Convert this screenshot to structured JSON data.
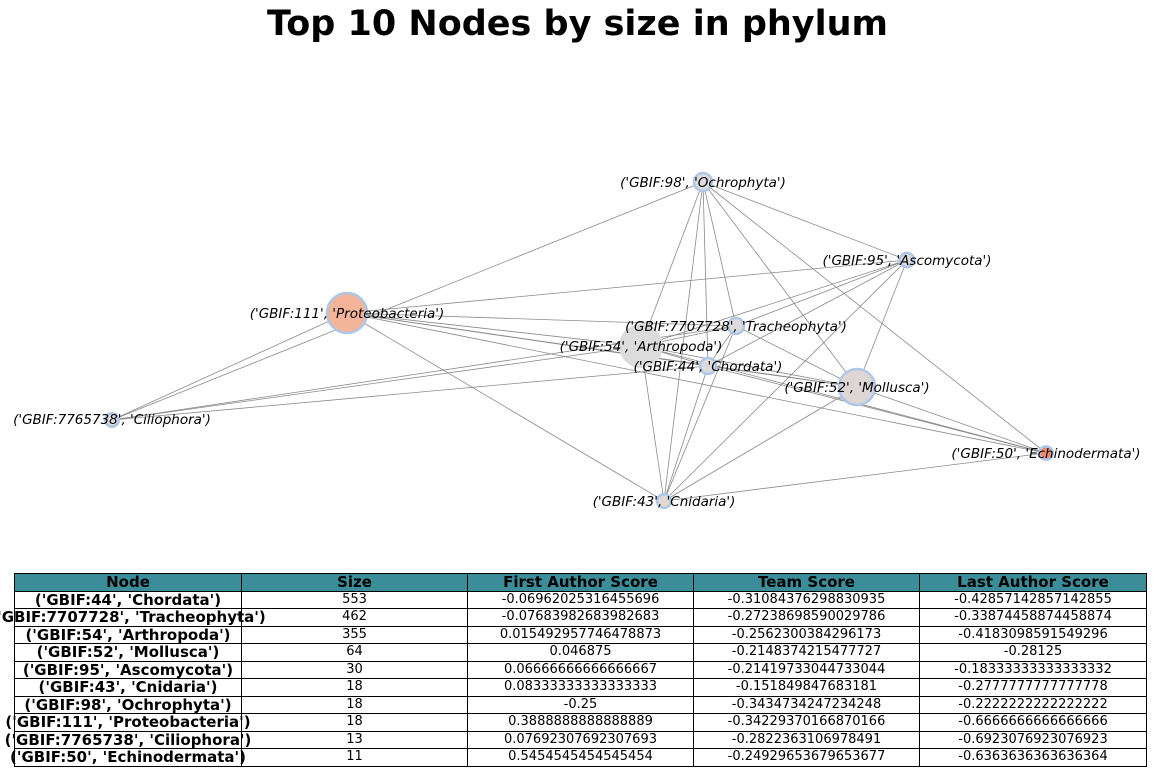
{
  "title": "Top 10 Nodes by size in phylum",
  "nodes": [
    {
      "id": "n44",
      "label": "('GBIF:44', 'Chordata')",
      "size": 553,
      "color": "#dcdcdc"
    },
    {
      "id": "n7707728",
      "label": "('GBIF:7707728', 'Tracheophyta')",
      "size": 462,
      "color": "#dcdcdc"
    },
    {
      "id": "n54",
      "label": "('GBIF:54', 'Arthropoda')",
      "size": 355,
      "color": "#dcdcdc"
    },
    {
      "id": "n52",
      "label": "('GBIF:52', 'Mollusca')",
      "size": 64,
      "color": "#ddd6d4"
    },
    {
      "id": "n95",
      "label": "('GBIF:95', 'Ascomycota')",
      "size": 30,
      "color": "#dcdcdc"
    },
    {
      "id": "n43",
      "label": "('GBIF:43', 'Cnidaria')",
      "size": 18,
      "color": "#e3d9d4"
    },
    {
      "id": "n98",
      "label": "('GBIF:98', 'Ochrophyta')",
      "size": 18,
      "color": "#dcdcdc"
    },
    {
      "id": "n111",
      "label": "('GBIF:111', 'Proteobacteria')",
      "size": 18,
      "color": "#f4b49a"
    },
    {
      "id": "n7765738",
      "label": "('GBIF:7765738', 'Ciliophora')",
      "size": 13,
      "color": "#dcdcdc"
    },
    {
      "id": "n50",
      "label": "('GBIF:50', 'Echinodermata')",
      "size": 11,
      "color": "#f08a6c"
    }
  ],
  "edges": [
    [
      "n98",
      "n54"
    ],
    [
      "n98",
      "n7707728"
    ],
    [
      "n98",
      "n44"
    ],
    [
      "n98",
      "n52"
    ],
    [
      "n98",
      "n50"
    ],
    [
      "n98",
      "n43"
    ],
    [
      "n98",
      "n95"
    ],
    [
      "n98",
      "n7765738"
    ],
    [
      "n95",
      "n111"
    ],
    [
      "n95",
      "n7707728"
    ],
    [
      "n95",
      "n54"
    ],
    [
      "n95",
      "n44"
    ],
    [
      "n95",
      "n52"
    ],
    [
      "n95",
      "n43"
    ],
    [
      "n111",
      "n7707728"
    ],
    [
      "n111",
      "n54"
    ],
    [
      "n111",
      "n44"
    ],
    [
      "n111",
      "n52"
    ],
    [
      "n111",
      "n7765738"
    ],
    [
      "n111",
      "n43"
    ],
    [
      "n7707728",
      "n54"
    ],
    [
      "n7707728",
      "n44"
    ],
    [
      "n7707728",
      "n52"
    ],
    [
      "n7707728",
      "n43"
    ],
    [
      "n7707728",
      "n7765738"
    ],
    [
      "n54",
      "n44"
    ],
    [
      "n54",
      "n52"
    ],
    [
      "n54",
      "n50"
    ],
    [
      "n54",
      "n7765738"
    ],
    [
      "n54",
      "n43"
    ],
    [
      "n44",
      "n52"
    ],
    [
      "n44",
      "n50"
    ],
    [
      "n44",
      "n43"
    ],
    [
      "n44",
      "n7765738"
    ],
    [
      "n52",
      "n50"
    ],
    [
      "n52",
      "n43"
    ],
    [
      "n43",
      "n50"
    ],
    [
      "n111",
      "n50"
    ]
  ],
  "table": {
    "headers": [
      "Node",
      "Size",
      "First Author Score",
      "Team Score",
      "Last Author Score"
    ],
    "rows": [
      [
        "('GBIF:44', 'Chordata')",
        "553",
        "-0.06962025316455696",
        "-0.31084376298830935",
        "-0.42857142857142855"
      ],
      [
        "('GBIF:7707728', 'Tracheophyta')",
        "462",
        "-0.07683982683982683",
        "-0.27238698590029786",
        "-0.33874458874458874"
      ],
      [
        "('GBIF:54', 'Arthropoda')",
        "355",
        "0.015492957746478873",
        "-0.2562300384296173",
        "-0.4183098591549296"
      ],
      [
        "('GBIF:52', 'Mollusca')",
        "64",
        "0.046875",
        "-0.2148374215477727",
        "-0.28125"
      ],
      [
        "('GBIF:95', 'Ascomycota')",
        "30",
        "0.06666666666666667",
        "-0.21419733044733044",
        "-0.18333333333333332"
      ],
      [
        "('GBIF:43', 'Cnidaria')",
        "18",
        "0.08333333333333333",
        "-0.151849847683181",
        "-0.2777777777777778"
      ],
      [
        "('GBIF:98', 'Ochrophyta')",
        "18",
        "-0.25",
        "-0.3434734247234248",
        "-0.2222222222222222"
      ],
      [
        "('GBIF:111', 'Proteobacteria')",
        "18",
        "0.3888888888888889",
        "-0.34229370166870166",
        "-0.6666666666666666"
      ],
      [
        "('GBIF:7765738', 'Ciliophora')",
        "13",
        "0.07692307692307693",
        "-0.2822363106978491",
        "-0.6923076923076923"
      ],
      [
        "('GBIF:50', 'Echinodermata')",
        "11",
        "0.5454545454545454",
        "-0.24929653679653677",
        "-0.6363636363636364"
      ]
    ]
  }
}
